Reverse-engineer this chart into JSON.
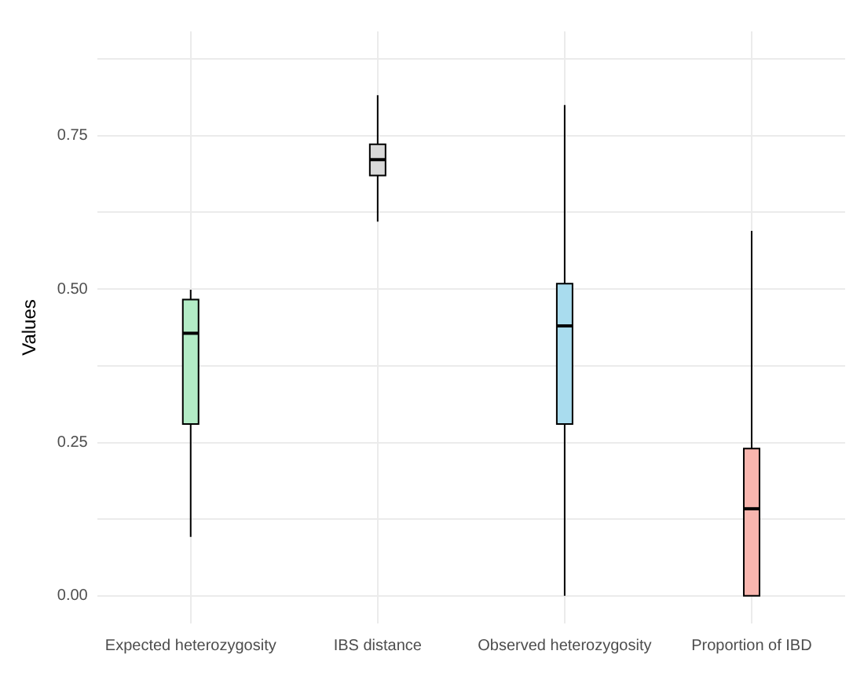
{
  "chart_data": {
    "type": "box",
    "ylabel": "Values",
    "categories": [
      "Expected heterozygosity",
      "IBS distance",
      "Observed heterozygosity",
      "Proportion of IBD"
    ],
    "boxes": [
      {
        "low": 0.096,
        "q1": 0.28,
        "median": 0.428,
        "q3": 0.483,
        "high": 0.499
      },
      {
        "low": 0.61,
        "q1": 0.685,
        "median": 0.711,
        "q3": 0.736,
        "high": 0.816
      },
      {
        "low": 0,
        "q1": 0.28,
        "median": 0.44,
        "q3": 0.509,
        "high": 0.8
      },
      {
        "low": 0,
        "q1": 0,
        "median": 0.142,
        "q3": 0.24,
        "high": 0.595
      }
    ],
    "colors": [
      "#b3ecc6",
      "#d9d9d9",
      "#a9dcee",
      "#f8b5ae"
    ],
    "ylim": [
      -0.045,
      0.92
    ],
    "yticks": [
      {
        "value": 0,
        "label": "0.00"
      },
      {
        "value": 0.125,
        "label": null
      },
      {
        "value": 0.25,
        "label": "0.25"
      },
      {
        "value": 0.375,
        "label": null
      },
      {
        "value": 0.5,
        "label": "0.50"
      },
      {
        "value": 0.625,
        "label": null
      },
      {
        "value": 0.75,
        "label": "0.75"
      },
      {
        "value": 0.875,
        "label": null
      }
    ],
    "grid": true
  }
}
